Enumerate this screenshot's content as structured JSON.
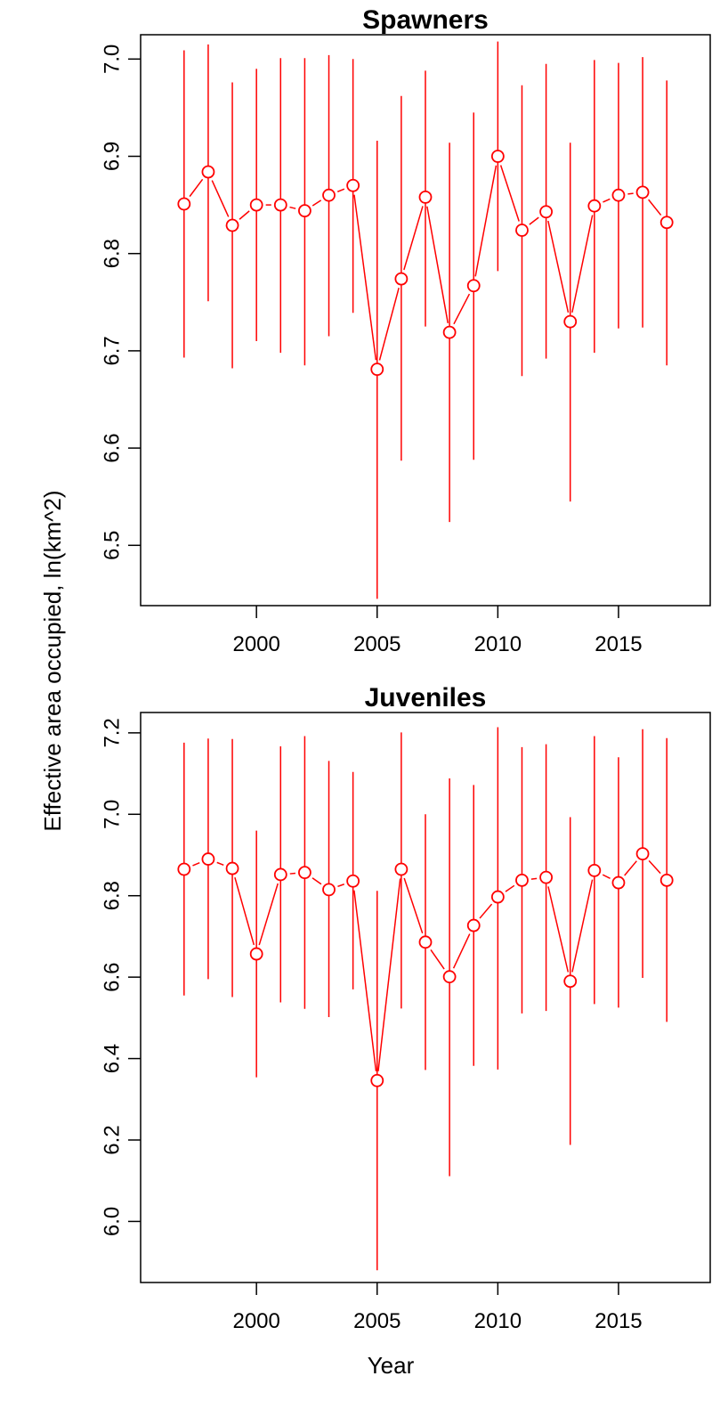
{
  "colors": {
    "series": "#ff0000",
    "axis": "#000000",
    "background": "#ffffff"
  },
  "shared_labels": {
    "xlabel": "Year",
    "ylabel": "Effective area occupied, ln(km^2)"
  },
  "chart_data": [
    {
      "type": "line",
      "title": "Spawners",
      "xlabel": "Year",
      "ylabel": "Effective area occupied, ln(km^2)",
      "xlim": [
        1995.2,
        2018.8
      ],
      "ylim": [
        6.438,
        7.025
      ],
      "x_ticks": [
        2000,
        2005,
        2010,
        2015
      ],
      "y_ticks": [
        6.5,
        6.6,
        6.7,
        6.8,
        6.9,
        7.0
      ],
      "x_tick_labels": [
        "2000",
        "2005",
        "2010",
        "2015"
      ],
      "y_tick_labels": [
        "6.5",
        "6.6",
        "6.7",
        "6.8",
        "6.9",
        "7.0"
      ],
      "grid": false,
      "series": [
        {
          "points": [
            {
              "year": 1997,
              "estimate": 6.851,
              "lower": 6.693,
              "upper": 7.009
            },
            {
              "year": 1998,
              "estimate": 6.884,
              "lower": 6.751,
              "upper": 7.015
            },
            {
              "year": 1999,
              "estimate": 6.829,
              "lower": 6.682,
              "upper": 6.976
            },
            {
              "year": 2000,
              "estimate": 6.85,
              "lower": 6.71,
              "upper": 6.99
            },
            {
              "year": 2001,
              "estimate": 6.85,
              "lower": 6.698,
              "upper": 7.001
            },
            {
              "year": 2002,
              "estimate": 6.844,
              "lower": 6.685,
              "upper": 7.001
            },
            {
              "year": 2003,
              "estimate": 6.86,
              "lower": 6.715,
              "upper": 7.004
            },
            {
              "year": 2004,
              "estimate": 6.87,
              "lower": 6.739,
              "upper": 7.0
            },
            {
              "year": 2005,
              "estimate": 6.681,
              "lower": 6.445,
              "upper": 6.916
            },
            {
              "year": 2006,
              "estimate": 6.774,
              "lower": 6.587,
              "upper": 6.962
            },
            {
              "year": 2007,
              "estimate": 6.858,
              "lower": 6.725,
              "upper": 6.988
            },
            {
              "year": 2008,
              "estimate": 6.719,
              "lower": 6.524,
              "upper": 6.914
            },
            {
              "year": 2009,
              "estimate": 6.767,
              "lower": 6.588,
              "upper": 6.945
            },
            {
              "year": 2010,
              "estimate": 6.9,
              "lower": 6.782,
              "upper": 7.018
            },
            {
              "year": 2011,
              "estimate": 6.824,
              "lower": 6.674,
              "upper": 6.973
            },
            {
              "year": 2012,
              "estimate": 6.843,
              "lower": 6.692,
              "upper": 6.995
            },
            {
              "year": 2013,
              "estimate": 6.73,
              "lower": 6.545,
              "upper": 6.914
            },
            {
              "year": 2014,
              "estimate": 6.849,
              "lower": 6.698,
              "upper": 6.999
            },
            {
              "year": 2015,
              "estimate": 6.86,
              "lower": 6.723,
              "upper": 6.996
            },
            {
              "year": 2016,
              "estimate": 6.863,
              "lower": 6.724,
              "upper": 7.002
            },
            {
              "year": 2017,
              "estimate": 6.832,
              "lower": 6.685,
              "upper": 6.978
            }
          ]
        }
      ]
    },
    {
      "type": "line",
      "title": "Juveniles",
      "xlabel": "Year",
      "ylabel": "Effective area occupied, ln(km^2)",
      "xlim": [
        1995.2,
        2018.8
      ],
      "ylim": [
        5.85,
        7.25
      ],
      "x_ticks": [
        2000,
        2005,
        2010,
        2015
      ],
      "y_ticks": [
        6.0,
        6.2,
        6.4,
        6.6,
        6.8,
        7.0,
        7.2
      ],
      "x_tick_labels": [
        "2000",
        "2005",
        "2010",
        "2015"
      ],
      "y_tick_labels": [
        "6.0",
        "6.2",
        "6.4",
        "6.6",
        "6.8",
        "7.0",
        "7.2"
      ],
      "grid": false,
      "series": [
        {
          "points": [
            {
              "year": 1997,
              "estimate": 6.865,
              "lower": 6.555,
              "upper": 7.176
            },
            {
              "year": 1998,
              "estimate": 6.89,
              "lower": 6.595,
              "upper": 7.186
            },
            {
              "year": 1999,
              "estimate": 6.867,
              "lower": 6.551,
              "upper": 7.185
            },
            {
              "year": 2000,
              "estimate": 6.657,
              "lower": 6.354,
              "upper": 6.96
            },
            {
              "year": 2001,
              "estimate": 6.852,
              "lower": 6.538,
              "upper": 7.167
            },
            {
              "year": 2002,
              "estimate": 6.857,
              "lower": 6.522,
              "upper": 7.192
            },
            {
              "year": 2003,
              "estimate": 6.815,
              "lower": 6.502,
              "upper": 7.131
            },
            {
              "year": 2004,
              "estimate": 6.836,
              "lower": 6.57,
              "upper": 7.104
            },
            {
              "year": 2005,
              "estimate": 6.346,
              "lower": 5.88,
              "upper": 6.812
            },
            {
              "year": 2006,
              "estimate": 6.865,
              "lower": 6.523,
              "upper": 7.201
            },
            {
              "year": 2007,
              "estimate": 6.686,
              "lower": 6.372,
              "upper": 7.0
            },
            {
              "year": 2008,
              "estimate": 6.601,
              "lower": 6.111,
              "upper": 7.088
            },
            {
              "year": 2009,
              "estimate": 6.727,
              "lower": 6.382,
              "upper": 7.072
            },
            {
              "year": 2010,
              "estimate": 6.797,
              "lower": 6.373,
              "upper": 7.214
            },
            {
              "year": 2011,
              "estimate": 6.838,
              "lower": 6.511,
              "upper": 7.165
            },
            {
              "year": 2012,
              "estimate": 6.845,
              "lower": 6.517,
              "upper": 7.172
            },
            {
              "year": 2013,
              "estimate": 6.59,
              "lower": 6.188,
              "upper": 6.993
            },
            {
              "year": 2014,
              "estimate": 6.862,
              "lower": 6.534,
              "upper": 7.192
            },
            {
              "year": 2015,
              "estimate": 6.832,
              "lower": 6.525,
              "upper": 7.14
            },
            {
              "year": 2016,
              "estimate": 6.903,
              "lower": 6.598,
              "upper": 7.209
            },
            {
              "year": 2017,
              "estimate": 6.838,
              "lower": 6.49,
              "upper": 7.187
            }
          ]
        }
      ]
    }
  ]
}
